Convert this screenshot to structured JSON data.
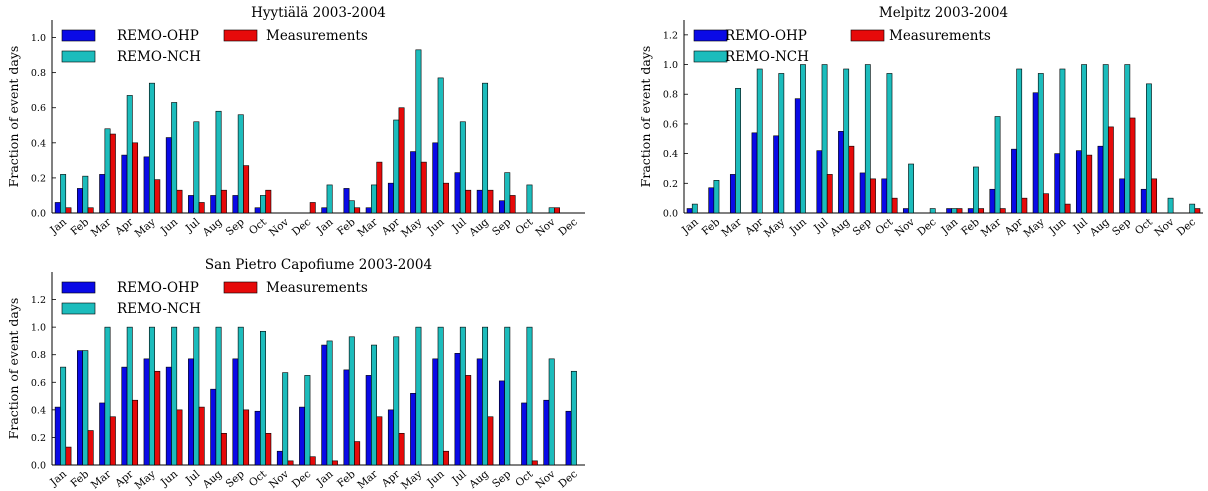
{
  "chart_data": [
    {
      "type": "bar",
      "title": "Hyytiälä 2003-2004",
      "ylabel": "Fraction of event days",
      "ylim": [
        0,
        1.1
      ],
      "yticks": [
        0.0,
        0.2,
        0.4,
        0.6,
        0.8,
        1.0
      ],
      "legend": "top-left",
      "categories": [
        "Jan",
        "Feb",
        "Mar",
        "Apr",
        "May",
        "Jun",
        "Jul",
        "Aug",
        "Sep",
        "Oct",
        "Nov",
        "Dec",
        "Jan",
        "Feb",
        "Mar",
        "Apr",
        "May",
        "Jun",
        "Jul",
        "Aug",
        "Sep",
        "Oct",
        "Nov",
        "Dec"
      ],
      "series": [
        {
          "name": "REMO-OHP",
          "color": "#0a0ae6",
          "values": [
            0.06,
            0.14,
            0.22,
            0.33,
            0.32,
            0.43,
            0.1,
            0.1,
            0.1,
            0.03,
            0,
            0,
            0.03,
            0.14,
            0.03,
            0.17,
            0.35,
            0.4,
            0.23,
            0.13,
            0.07,
            0,
            0,
            0
          ]
        },
        {
          "name": "REMO-NCH",
          "color": "#1cbcbc",
          "values": [
            0.22,
            0.21,
            0.48,
            0.67,
            0.74,
            0.63,
            0.52,
            0.58,
            0.56,
            0.1,
            0,
            0,
            0.16,
            0.07,
            0.16,
            0.53,
            0.93,
            0.77,
            0.52,
            0.74,
            0.23,
            0.16,
            0.03,
            0
          ]
        },
        {
          "name": "Measurements",
          "color": "#e60a0a",
          "values": [
            0.03,
            0.03,
            0.45,
            0.4,
            0.19,
            0.13,
            0.06,
            0.13,
            0.27,
            0.13,
            0,
            0.06,
            0,
            0.03,
            0.29,
            0.6,
            0.29,
            0.17,
            0.13,
            0.13,
            0.1,
            0,
            0.03,
            0
          ]
        }
      ]
    },
    {
      "type": "bar",
      "title": "Melpitz 2003-2004",
      "ylabel": "Fraction of event days",
      "ylim": [
        0,
        1.3
      ],
      "yticks": [
        0.0,
        0.2,
        0.4,
        0.6,
        0.8,
        1.0,
        1.2
      ],
      "legend": "top-left",
      "categories": [
        "Jan",
        "Feb",
        "Mar",
        "Apr",
        "May",
        "Jun",
        "Jul",
        "Aug",
        "Sep",
        "Oct",
        "Nov",
        "Dec",
        "Jan",
        "Feb",
        "Mar",
        "Apr",
        "May",
        "Jun",
        "Jul",
        "Aug",
        "Sep",
        "Oct",
        "Nov",
        "Dec"
      ],
      "series": [
        {
          "name": "REMO-OHP",
          "color": "#0a0ae6",
          "values": [
            0.03,
            0.17,
            0.26,
            0.54,
            0.52,
            0.77,
            0.42,
            0.55,
            0.27,
            0.23,
            0.03,
            0,
            0.03,
            0.03,
            0.16,
            0.43,
            0.81,
            0.4,
            0.42,
            0.45,
            0.23,
            0.16,
            0,
            0
          ]
        },
        {
          "name": "REMO-NCH",
          "color": "#1cbcbc",
          "values": [
            0.06,
            0.22,
            0.84,
            0.97,
            0.94,
            1.0,
            1.0,
            0.97,
            1.0,
            0.94,
            0.33,
            0.03,
            0.03,
            0.31,
            0.65,
            0.97,
            0.94,
            0.97,
            1.0,
            1.0,
            1.0,
            0.87,
            0.1,
            0.06
          ]
        },
        {
          "name": "Measurements",
          "color": "#e60a0a",
          "values": [
            0,
            0,
            0,
            0,
            0,
            0,
            0.26,
            0.45,
            0.23,
            0.1,
            0,
            0,
            0.03,
            0.03,
            0.03,
            0.1,
            0.13,
            0.06,
            0.39,
            0.58,
            0.64,
            0.23,
            0,
            0.03
          ]
        }
      ]
    },
    {
      "type": "bar",
      "title": "San Pietro Capofiume 2003-2004",
      "ylabel": "Fraction of event days",
      "ylim": [
        0,
        1.4
      ],
      "yticks": [
        0.0,
        0.2,
        0.4,
        0.6,
        0.8,
        1.0,
        1.2
      ],
      "legend": "top-left",
      "categories": [
        "Jan",
        "Feb",
        "Mar",
        "Apr",
        "May",
        "Jun",
        "Jul",
        "Aug",
        "Sep",
        "Oct",
        "Nov",
        "Dec",
        "Jan",
        "Feb",
        "Mar",
        "Apr",
        "May",
        "Jun",
        "Jul",
        "Aug",
        "Sep",
        "Oct",
        "Nov",
        "Dec"
      ],
      "series": [
        {
          "name": "REMO-OHP",
          "color": "#0a0ae6",
          "values": [
            0.42,
            0.83,
            0.45,
            0.71,
            0.77,
            0.71,
            0.77,
            0.55,
            0.77,
            0.39,
            0.1,
            0.42,
            0.87,
            0.69,
            0.65,
            0.4,
            0.52,
            0.77,
            0.81,
            0.77,
            0.61,
            0.45,
            0.47,
            0.39
          ]
        },
        {
          "name": "REMO-NCH",
          "color": "#1cbcbc",
          "values": [
            0.71,
            0.83,
            1.0,
            1.0,
            1.0,
            1.0,
            1.0,
            1.0,
            1.0,
            0.97,
            0.67,
            0.65,
            0.9,
            0.93,
            0.87,
            0.93,
            1.0,
            1.0,
            1.0,
            1.0,
            1.0,
            1.0,
            0.77,
            0.68
          ]
        },
        {
          "name": "Measurements",
          "color": "#e60a0a",
          "values": [
            0.13,
            0.25,
            0.35,
            0.47,
            0.68,
            0.4,
            0.42,
            0.23,
            0.4,
            0.23,
            0.03,
            0.06,
            0.03,
            0.17,
            0.35,
            0.23,
            0,
            0.1,
            0.65,
            0.35,
            0,
            0.03,
            0,
            0
          ]
        }
      ]
    }
  ]
}
